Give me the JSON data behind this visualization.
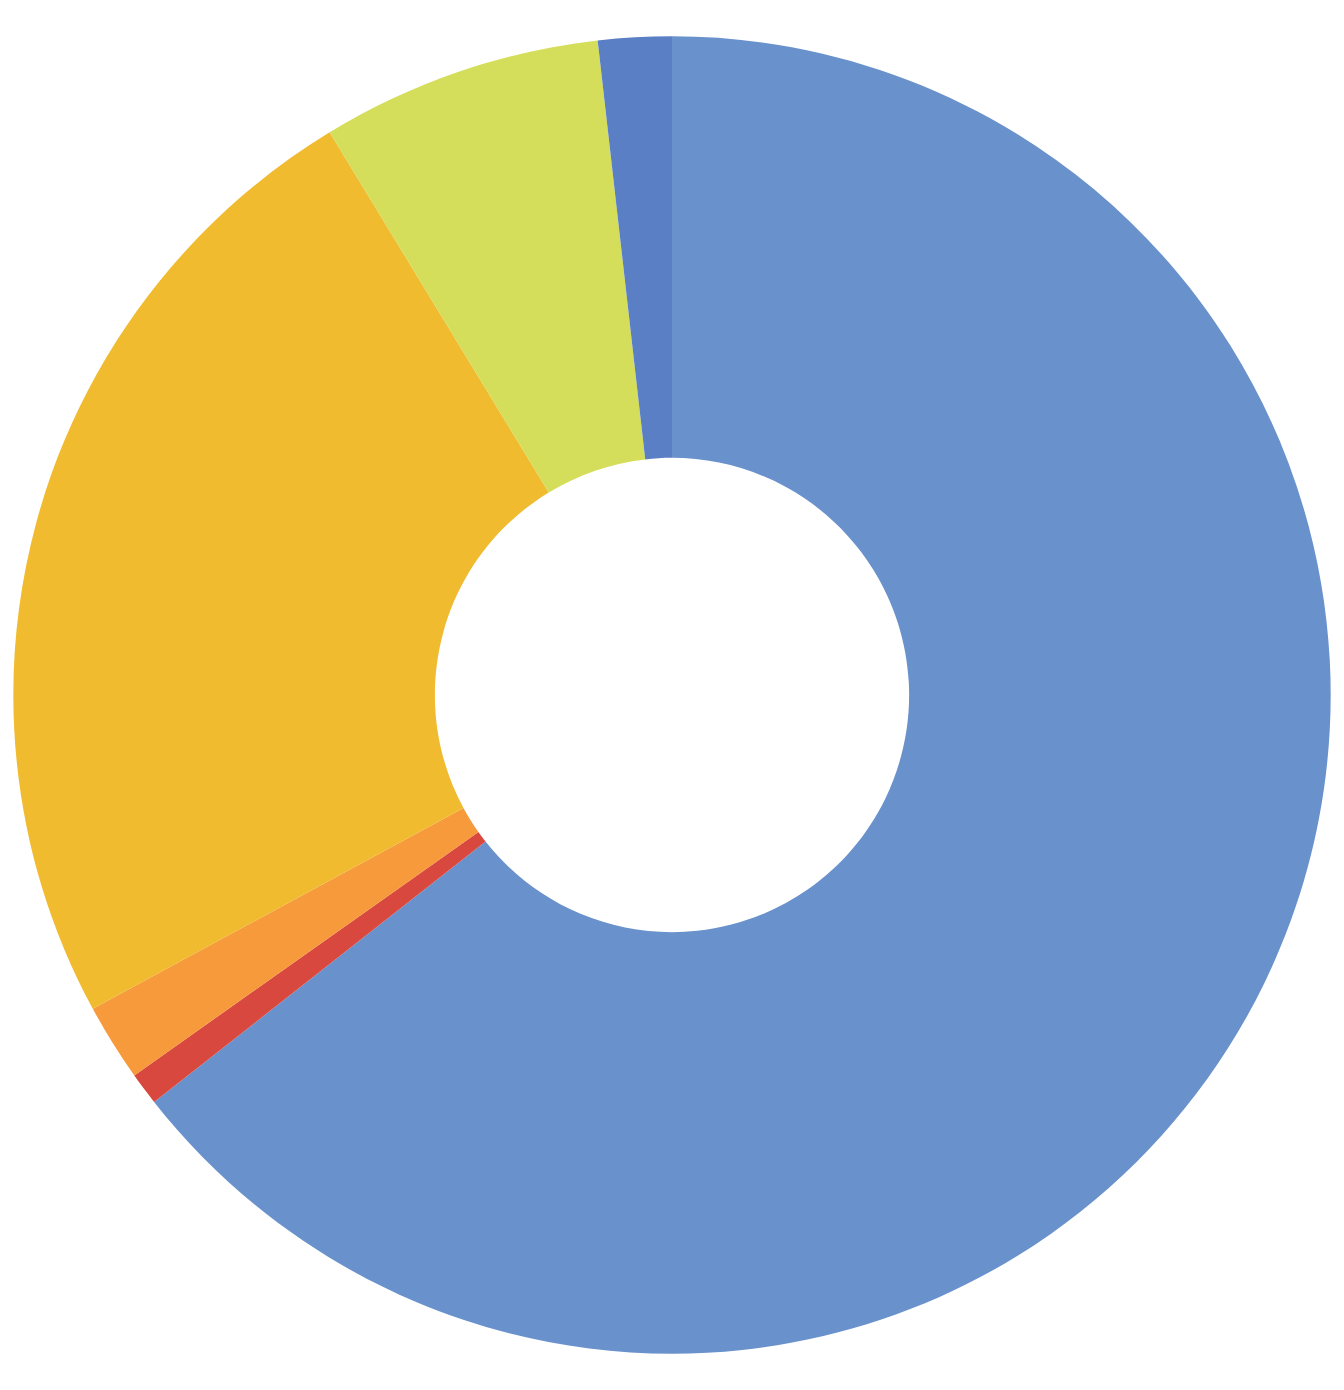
{
  "chart_data": {
    "type": "donut",
    "categories": [
      null,
      null,
      null,
      null,
      null,
      null
    ],
    "values": [
      64.4,
      0.8,
      1.9,
      24.2,
      6.9,
      1.8
    ],
    "colors": [
      "#6991cc",
      "#d9483f",
      "#f79a3b",
      "#f1bb2f",
      "#d4de5a",
      "#5b7fc4"
    ]
  }
}
